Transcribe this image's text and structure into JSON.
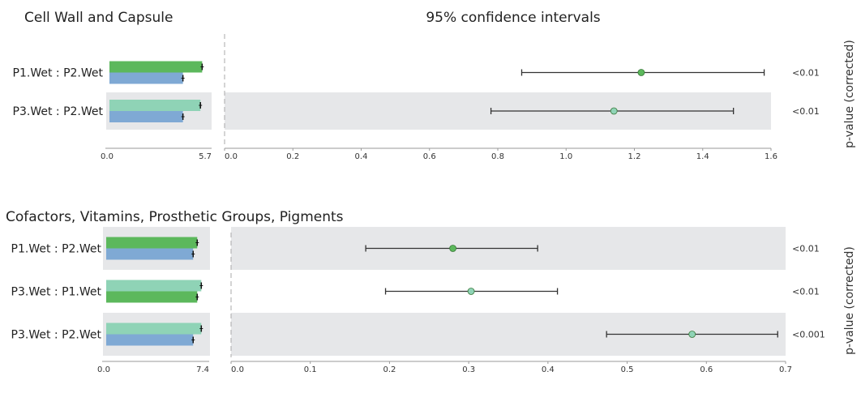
{
  "chart_data": [
    {
      "type": "extended_error_bar",
      "title": "Cell Wall and Capsule",
      "ci_title": "95% confidence intervals",
      "side_label": "p-value (corrected)",
      "bar_xlim": [
        0,
        5.7
      ],
      "bar_ticks": [
        "0.0",
        "5.7"
      ],
      "ci_xlim": [
        0,
        1.6
      ],
      "ci_ticks": [
        "0.0",
        "0.2",
        "0.4",
        "0.6",
        "0.8",
        "1.0",
        "1.2",
        "1.4",
        "1.6"
      ],
      "rows": [
        {
          "label": "P1.Wet : P2.Wet",
          "bars": [
            {
              "group": "P1.Wet",
              "value": 5.3
            },
            {
              "group": "P2.Wet",
              "value": 4.2
            }
          ],
          "diff": 1.22,
          "ci": [
            0.87,
            1.58
          ],
          "pvalue": "<0.01",
          "shaded": false,
          "point_color": "#5cb85c"
        },
        {
          "label": "P3.Wet : P2.Wet",
          "bars": [
            {
              "group": "P3.Wet",
              "value": 5.2
            },
            {
              "group": "P2.Wet",
              "value": 4.2
            }
          ],
          "diff": 1.14,
          "ci": [
            0.78,
            1.49
          ],
          "pvalue": "<0.01",
          "shaded": true,
          "point_color": "#8fd3b6"
        }
      ]
    },
    {
      "type": "extended_error_bar",
      "title": "Cofactors, Vitamins, Prosthetic Groups, Pigments",
      "ci_title": "",
      "side_label": "p-value (corrected)",
      "bar_xlim": [
        0,
        7.4
      ],
      "bar_ticks": [
        "0.0",
        "7.4"
      ],
      "ci_xlim": [
        0,
        0.7
      ],
      "ci_ticks": [
        "0.0",
        "0.1",
        "0.2",
        "0.3",
        "0.4",
        "0.5",
        "0.6",
        "0.7"
      ],
      "rows": [
        {
          "label": "P1.Wet : P2.Wet",
          "bars": [
            {
              "group": "P1.Wet",
              "value": 6.7
            },
            {
              "group": "P2.Wet",
              "value": 6.4
            }
          ],
          "diff": 0.28,
          "ci": [
            0.17,
            0.387
          ],
          "pvalue": "<0.01",
          "shaded": true,
          "point_color": "#5cb85c"
        },
        {
          "label": "P3.Wet : P1.Wet",
          "bars": [
            {
              "group": "P3.Wet",
              "value": 7.0
            },
            {
              "group": "P1.Wet",
              "value": 6.7
            }
          ],
          "diff": 0.303,
          "ci": [
            0.195,
            0.412
          ],
          "pvalue": "<0.01",
          "shaded": false,
          "point_color": "#8fd3b6"
        },
        {
          "label": "P3.Wet : P2.Wet",
          "bars": [
            {
              "group": "P3.Wet",
              "value": 7.0
            },
            {
              "group": "P2.Wet",
              "value": 6.4
            }
          ],
          "diff": 0.582,
          "ci": [
            0.474,
            0.69
          ],
          "pvalue": "<0.001",
          "shaded": true,
          "point_color": "#8fd3b6"
        }
      ]
    }
  ],
  "colors": {
    "P1.Wet": "#5cb85c",
    "P2.Wet": "#7fa9d4",
    "P3.Wet": "#8fd3b6",
    "shade": "#e6e7e9",
    "axis": "#9a9a9a"
  }
}
